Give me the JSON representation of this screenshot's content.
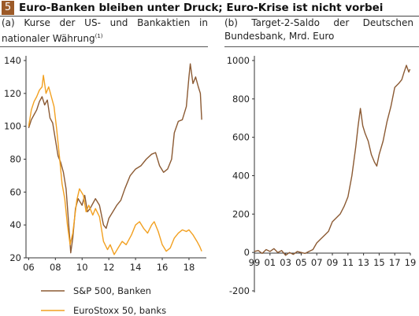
{
  "figure": {
    "number": "5",
    "title": "Euro-Banken bleiben unter Druck; Euro-Krise ist nicht vorbei"
  },
  "colors": {
    "brand": "#9c5a28",
    "sp500": "#8b5a33",
    "eurostoxx": "#f2a020",
    "target2": "#8b5a33"
  },
  "chart_data": [
    {
      "type": "line",
      "title": "(a) Kurse der US- und Bankaktien in nationaler Währung",
      "title_note": "(1)",
      "xlabel": "",
      "ylabel": "",
      "xlim": [
        2005.8,
        2019.3
      ],
      "ylim": [
        20,
        140
      ],
      "x_ticks": [
        "06",
        "08",
        "10",
        "12",
        "14",
        "16",
        "18"
      ],
      "y_ticks": [
        "140",
        "120",
        "100",
        "80",
        "60",
        "40",
        "20"
      ],
      "grid": false,
      "legend_position": "bottom",
      "series": [
        {
          "name": "S&P 500, Banken",
          "color": "#8b5a33",
          "points": [
            [
              2006.0,
              99
            ],
            [
              2006.2,
              104
            ],
            [
              2006.4,
              107
            ],
            [
              2006.6,
              110
            ],
            [
              2006.8,
              115
            ],
            [
              2007.0,
              118
            ],
            [
              2007.2,
              113
            ],
            [
              2007.4,
              116
            ],
            [
              2007.6,
              105
            ],
            [
              2007.8,
              102
            ],
            [
              2008.0,
              92
            ],
            [
              2008.2,
              82
            ],
            [
              2008.4,
              78
            ],
            [
              2008.6,
              72
            ],
            [
              2008.8,
              62
            ],
            [
              2009.0,
              40
            ],
            [
              2009.15,
              23
            ],
            [
              2009.3,
              32
            ],
            [
              2009.5,
              50
            ],
            [
              2009.7,
              56
            ],
            [
              2010.0,
              52
            ],
            [
              2010.2,
              58
            ],
            [
              2010.4,
              48
            ],
            [
              2010.6,
              50
            ],
            [
              2010.8,
              53
            ],
            [
              2011.0,
              56
            ],
            [
              2011.3,
              52
            ],
            [
              2011.6,
              40
            ],
            [
              2011.8,
              38
            ],
            [
              2012.0,
              44
            ],
            [
              2012.3,
              48
            ],
            [
              2012.6,
              52
            ],
            [
              2012.9,
              55
            ],
            [
              2013.2,
              62
            ],
            [
              2013.6,
              70
            ],
            [
              2014.0,
              74
            ],
            [
              2014.4,
              76
            ],
            [
              2014.8,
              80
            ],
            [
              2015.2,
              83
            ],
            [
              2015.5,
              84
            ],
            [
              2015.8,
              76
            ],
            [
              2016.1,
              72
            ],
            [
              2016.4,
              74
            ],
            [
              2016.7,
              80
            ],
            [
              2016.9,
              96
            ],
            [
              2017.2,
              103
            ],
            [
              2017.5,
              104
            ],
            [
              2017.8,
              112
            ],
            [
              2018.0,
              130
            ],
            [
              2018.1,
              138
            ],
            [
              2018.3,
              126
            ],
            [
              2018.5,
              130
            ],
            [
              2018.7,
              124
            ],
            [
              2018.85,
              120
            ],
            [
              2018.95,
              104
            ]
          ]
        },
        {
          "name": "EuroStoxx 50, banks",
          "color": "#f2a020",
          "points": [
            [
              2006.0,
              100
            ],
            [
              2006.2,
              110
            ],
            [
              2006.4,
              115
            ],
            [
              2006.6,
              118
            ],
            [
              2006.8,
              122
            ],
            [
              2007.0,
              124
            ],
            [
              2007.1,
              131
            ],
            [
              2007.3,
              120
            ],
            [
              2007.5,
              124
            ],
            [
              2007.7,
              118
            ],
            [
              2007.9,
              112
            ],
            [
              2008.1,
              98
            ],
            [
              2008.3,
              82
            ],
            [
              2008.5,
              65
            ],
            [
              2008.7,
              56
            ],
            [
              2008.9,
              40
            ],
            [
              2009.1,
              28
            ],
            [
              2009.3,
              35
            ],
            [
              2009.6,
              55
            ],
            [
              2009.8,
              62
            ],
            [
              2010.1,
              58
            ],
            [
              2010.3,
              48
            ],
            [
              2010.5,
              52
            ],
            [
              2010.8,
              46
            ],
            [
              2011.0,
              50
            ],
            [
              2011.3,
              45
            ],
            [
              2011.6,
              30
            ],
            [
              2011.9,
              25
            ],
            [
              2012.1,
              28
            ],
            [
              2012.4,
              22
            ],
            [
              2012.7,
              26
            ],
            [
              2013.0,
              30
            ],
            [
              2013.3,
              28
            ],
            [
              2013.7,
              34
            ],
            [
              2014.0,
              40
            ],
            [
              2014.3,
              42
            ],
            [
              2014.6,
              38
            ],
            [
              2014.9,
              35
            ],
            [
              2015.2,
              40
            ],
            [
              2015.4,
              42
            ],
            [
              2015.7,
              36
            ],
            [
              2016.0,
              28
            ],
            [
              2016.3,
              24
            ],
            [
              2016.6,
              26
            ],
            [
              2016.9,
              32
            ],
            [
              2017.2,
              35
            ],
            [
              2017.5,
              37
            ],
            [
              2017.8,
              36
            ],
            [
              2018.0,
              37
            ],
            [
              2018.3,
              34
            ],
            [
              2018.6,
              30
            ],
            [
              2018.8,
              27
            ],
            [
              2018.95,
              24
            ]
          ]
        }
      ]
    },
    {
      "type": "line",
      "title": "(b) Target-2-Saldo der Deutschen Bundesbank, Mrd. Euro",
      "xlabel": "",
      "ylabel": "",
      "xlim": [
        1999,
        2019
      ],
      "ylim": [
        -200,
        1000
      ],
      "x_ticks": [
        "99",
        "01",
        "03",
        "05",
        "07",
        "09",
        "11",
        "13",
        "15",
        "17",
        "19"
      ],
      "y_ticks": [
        "1000",
        "800",
        "600",
        "400",
        "200",
        "0",
        "-200"
      ],
      "grid": false,
      "legend_position": "none",
      "series": [
        {
          "color": "#8b5a33",
          "points": [
            [
              1999.0,
              5
            ],
            [
              1999.5,
              10
            ],
            [
              2000.0,
              -5
            ],
            [
              2000.5,
              15
            ],
            [
              2001.0,
              5
            ],
            [
              2001.5,
              20
            ],
            [
              2002.0,
              0
            ],
            [
              2002.5,
              10
            ],
            [
              2003.0,
              -15
            ],
            [
              2003.5,
              0
            ],
            [
              2004.0,
              -10
            ],
            [
              2004.5,
              5
            ],
            [
              2005.0,
              0
            ],
            [
              2005.5,
              -5
            ],
            [
              2006.0,
              5
            ],
            [
              2006.5,
              15
            ],
            [
              2007.0,
              50
            ],
            [
              2007.5,
              70
            ],
            [
              2008.0,
              90
            ],
            [
              2008.5,
              110
            ],
            [
              2009.0,
              160
            ],
            [
              2009.5,
              180
            ],
            [
              2010.0,
              200
            ],
            [
              2010.5,
              240
            ],
            [
              2011.0,
              290
            ],
            [
              2011.5,
              400
            ],
            [
              2012.0,
              550
            ],
            [
              2012.3,
              660
            ],
            [
              2012.6,
              750
            ],
            [
              2012.9,
              660
            ],
            [
              2013.2,
              620
            ],
            [
              2013.6,
              580
            ],
            [
              2014.0,
              510
            ],
            [
              2014.4,
              470
            ],
            [
              2014.7,
              450
            ],
            [
              2015.0,
              510
            ],
            [
              2015.5,
              580
            ],
            [
              2016.0,
              680
            ],
            [
              2016.5,
              760
            ],
            [
              2017.0,
              860
            ],
            [
              2017.5,
              880
            ],
            [
              2017.9,
              900
            ],
            [
              2018.2,
              940
            ],
            [
              2018.5,
              975
            ],
            [
              2018.8,
              940
            ],
            [
              2018.95,
              955
            ]
          ]
        }
      ]
    }
  ]
}
